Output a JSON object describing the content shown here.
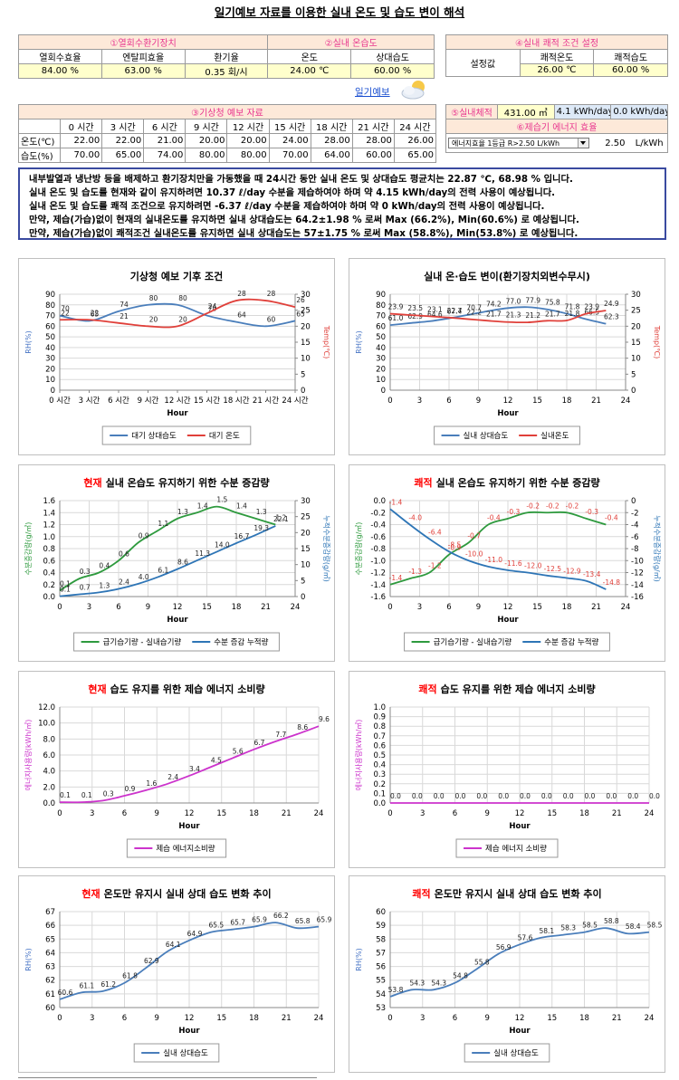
{
  "header": {
    "title": "일기예보 자료를 이용한 실내 온도 및 습도 변이 해석"
  },
  "ventilation_table": {
    "group1": "①열회수환기장치",
    "group2": "②실내 온습도",
    "headers": [
      "열회수효율",
      "엔탈피효율",
      "환기율",
      "온도",
      "상대습도"
    ],
    "values": [
      "84.00 %",
      "63.00 %",
      "0.35 회/시",
      "24.00 ℃",
      "60.00 %"
    ]
  },
  "comfort_table": {
    "title": "④실내 쾌적 조건 설정",
    "row_label": "설정값",
    "headers": [
      "쾌적온도",
      "쾌적습도"
    ],
    "values": [
      "26.00 ℃",
      "60.00 %"
    ]
  },
  "forecast_link": "일기예보",
  "forecast_table": {
    "title": "③기상청 예보 자료",
    "headers": [
      "0 시간",
      "3 시간",
      "6 시간",
      "9 시간",
      "12 시간",
      "15 시간",
      "18 시간",
      "21 시간",
      "24 시간"
    ],
    "rows": [
      {
        "label": "온도(℃)",
        "values": [
          "22.00",
          "22.00",
          "21.00",
          "20.00",
          "20.00",
          "24.00",
          "28.00",
          "28.00",
          "26.00"
        ]
      },
      {
        "label": "습도(%)",
        "values": [
          "70.00",
          "65.00",
          "74.00",
          "80.00",
          "80.00",
          "70.00",
          "64.00",
          "60.00",
          "65.00"
        ]
      }
    ]
  },
  "volume_table": {
    "label": "⑤실내체적",
    "volume": "431.00 ㎥",
    "energy_current": "4.1 kWh/day",
    "energy_comfort": "0.0 kWh/day",
    "efficiency_title": "⑥제습기 에너지 효율",
    "dropdown": "에너지효율 1등급 R>2.50 L/kWh",
    "efficiency": "2.50",
    "efficiency_unit": "L/kWh"
  },
  "summary": [
    "내부발열과 냉난방 등을 배제하고 환기장치만을 가동했을 때  24시간 동안 실내 온도 및 상대습도 평균치는 22.87 ℃, 68.98 % 입니다.",
    "실내 온도 및 습도를 현재와 같이 유지하려면  10.37 ℓ/day 수분을 제습하여야 하며  약 4.15 kWh/day의 전력 사용이 예상됩니다.",
    "실내 온도 및 습도를 쾌적 조건으로 유지하려면  -6.37 ℓ/day 수분을 제습하여야 하며  약 0 kWh/day의 전력 사용이 예상됩니다.",
    "만약, 제습(가습)없이 현재의 실내온도를 유지하면 실내 상대습도는 64.2±1.98 % 로써 Max (66.2%), Min(60.6%) 로 예상됩니다.",
    "만약, 제습(가습)없이 쾌적조건 실내온도를 유지하면 실내 상대습도는 57±1.75 % 로써 Max (58.8%), Min(53.8%) 로 예상됩니다."
  ],
  "chart_data": [
    {
      "type": "line",
      "title": "기상청 예보 기후 조건",
      "xlabel": "Hour",
      "ylabel": "RH(%)",
      "ylabel_color": "#4472c4",
      "y2label": "Temp(℃)",
      "y2label_color": "#e0403a",
      "grid": "y",
      "categories": [
        "0 시간",
        "3 시간",
        "6 시간",
        "9 시간",
        "12 시간",
        "15 시간",
        "18 시간",
        "21 시간",
        "24 시간"
      ],
      "ylim": [
        0,
        90
      ],
      "yticks": [
        0,
        10,
        20,
        30,
        40,
        50,
        60,
        70,
        80,
        90
      ],
      "y2lim": [
        0,
        30
      ],
      "y2ticks": [
        0,
        5,
        10,
        15,
        20,
        25,
        30
      ],
      "series": [
        {
          "name": "대기 상대습도",
          "color": "#4a7ebb",
          "values": [
            70,
            65,
            74,
            80,
            80,
            70,
            64,
            60,
            65
          ]
        },
        {
          "name": "대기 온도",
          "color": "#e0403a",
          "axis": "y2",
          "values": [
            22,
            22,
            21,
            20,
            20,
            24,
            28,
            28,
            26
          ]
        }
      ]
    },
    {
      "type": "line",
      "title": "실내 온·습도 변이(환기장치외변수무시)",
      "xlabel": "Hour",
      "ylabel": "RH(%)",
      "ylabel_color": "#4472c4",
      "y2label": "Temp(℃)",
      "y2label_color": "#e0403a",
      "grid": "both",
      "x": [
        0,
        2,
        4,
        6,
        8,
        10,
        12,
        14,
        16,
        18,
        20,
        22
      ],
      "xlim": [
        0,
        24
      ],
      "xticks": [
        0,
        3,
        6,
        9,
        12,
        15,
        18,
        21,
        24
      ],
      "ylim": [
        0,
        90
      ],
      "yticks": [
        0,
        10,
        20,
        30,
        40,
        50,
        60,
        70,
        80,
        90
      ],
      "y2lim": [
        0,
        30
      ],
      "y2ticks": [
        0,
        5,
        10,
        15,
        20,
        25,
        30
      ],
      "series": [
        {
          "name": "실내 상대습도",
          "color": "#4a7ebb",
          "values": [
            61,
            62.9,
            64.6,
            67.4,
            70.7,
            74.2,
            77,
            77.9,
            75.8,
            71.8,
            66.5,
            62.3
          ],
          "value_labels": [
            "61.0",
            "62.9",
            "64.6",
            "67.4",
            "70.7",
            "74.2",
            "77.0",
            "77.9",
            "75.8",
            "71.8",
            "66.5",
            "62.3"
          ]
        },
        {
          "name": "실내온도",
          "color": "#e0403a",
          "axis": "y2",
          "values": [
            23.9,
            23.5,
            23.1,
            22.7,
            22.2,
            21.7,
            21.3,
            21.2,
            21.7,
            21.8,
            23.9,
            24.9
          ]
        }
      ]
    },
    {
      "type": "line",
      "title_highlight": "현재",
      "title": "실내 온습도 유지하기 위한 수분 증감량",
      "xlabel": "Hour",
      "ylabel": "수분증감량(g/㎥)",
      "ylabel_color": "#2e9a3e",
      "y2label": "누적수분증감량(g/㎥)",
      "y2label_color": "#2e75b6",
      "grid": "both",
      "x": [
        0,
        2,
        4,
        6,
        8,
        10,
        12,
        14,
        16,
        18,
        20,
        22
      ],
      "xlim": [
        0,
        24
      ],
      "xticks": [
        0,
        3,
        6,
        9,
        12,
        15,
        18,
        21,
        24
      ],
      "ylim": [
        0,
        1.6
      ],
      "yticks": [
        {
          "value": 0,
          "label": "0.0"
        },
        0.2,
        0.4,
        0.6,
        0.8,
        {
          "value": 1,
          "label": "1.0"
        },
        1.2,
        1.4,
        1.6
      ],
      "y2lim": [
        0,
        30
      ],
      "y2ticks": [
        0,
        5,
        10,
        15,
        20,
        25,
        30
      ],
      "series": [
        {
          "name": "급기습기량 - 실내습기량",
          "color": "#2e9a3e",
          "values": [
            0.1,
            0.3,
            0.4,
            0.6,
            0.9,
            1.1,
            1.3,
            1.4,
            1.5,
            1.4,
            1.3,
            1.2
          ]
        },
        {
          "name": "수분 증감 누적량",
          "color": "#2e75b6",
          "axis": "y2",
          "values": [
            0.1,
            0.7,
            1.3,
            2.4,
            4,
            6.1,
            8.6,
            11.3,
            14,
            16.7,
            19.3,
            22.1
          ],
          "value_labels": [
            "0.1",
            "0.7",
            "1.3",
            "2.4",
            "4.0",
            "6.1",
            "8.6",
            "11.3",
            "14.0",
            "16.7",
            "19.3",
            "22.1"
          ]
        }
      ]
    },
    {
      "type": "line",
      "title_highlight": "쾌적",
      "title": "실내 온습도 유지하기 위한 수분 증감량",
      "xlabel": "Hour",
      "ylabel": "수분증감량(g/㎥)",
      "ylabel_color": "#2e9a3e",
      "y2label": "누적수분증감량(g/㎥)",
      "y2label_color": "#2e75b6",
      "grid": "both",
      "label_color": "#e0403a",
      "x": [
        0,
        2,
        4,
        6,
        8,
        10,
        12,
        14,
        16,
        18,
        20,
        22
      ],
      "xlim": [
        0,
        24
      ],
      "xticks": [
        0,
        3,
        6,
        9,
        12,
        15,
        18,
        21,
        24
      ],
      "ylim": [
        -1.6,
        0
      ],
      "yticks": [
        -1.6,
        -1.4,
        -1.2,
        {
          "value": -1,
          "label": "-1.0"
        },
        -0.8,
        -0.6,
        -0.4,
        -0.2,
        {
          "value": 0,
          "label": "0.0"
        }
      ],
      "y2lim": [
        -16,
        0
      ],
      "y2ticks": [
        -16,
        -14,
        -12,
        -10,
        -8,
        -6,
        -4,
        -2,
        0
      ],
      "series": [
        {
          "name": "급기습기량 - 실내습기량",
          "color": "#2e9a3e",
          "values": [
            -1.4,
            -1.3,
            -1.2,
            -0.9,
            -0.7,
            -0.4,
            -0.3,
            -0.2,
            -0.2,
            -0.2,
            -0.3,
            -0.4
          ]
        },
        {
          "name": "수분 증감 누적량",
          "color": "#2e75b6",
          "axis": "y2",
          "values": [
            -1.4,
            -4,
            -6.4,
            -8.5,
            -10,
            -11,
            -11.6,
            -12,
            -12.5,
            -12.9,
            -13.4,
            -14.8
          ],
          "value_labels": [
            "-1.4",
            "-4.0",
            "-6.4",
            "-8.5",
            "-10.0",
            "-11.0",
            "-11.6",
            "-12.0",
            "-12.5",
            "-12.9",
            "-13.4",
            "-14.8"
          ]
        }
      ]
    },
    {
      "type": "line",
      "title_highlight": "현재",
      "title": "습도 유지를 위한 제습 에너지 소비량",
      "xlabel": "Hour",
      "ylabel": "에너지사용량(kWh/㎥)",
      "ylabel_color": "#cc33cc",
      "grid": "both",
      "x": [
        0,
        2,
        4,
        6,
        8,
        10,
        12,
        14,
        16,
        18,
        20,
        22,
        24
      ],
      "xlim": [
        0,
        24
      ],
      "xticks": [
        0,
        3,
        6,
        9,
        12,
        15,
        18,
        21,
        24
      ],
      "ylim": [
        0,
        12
      ],
      "yticks": [
        {
          "value": 0,
          "label": "0.0"
        },
        {
          "value": 2,
          "label": "2.0"
        },
        {
          "value": 4,
          "label": "4.0"
        },
        {
          "value": 6,
          "label": "6.0"
        },
        {
          "value": 8,
          "label": "8.0"
        },
        {
          "value": 10,
          "label": "10.0"
        },
        {
          "value": 12,
          "label": "12.0"
        }
      ],
      "series": [
        {
          "name": "제습 에너지소비량",
          "color": "#cc33cc",
          "values": [
            0.1,
            0.1,
            0.3,
            0.9,
            1.6,
            2.4,
            3.4,
            4.5,
            5.6,
            6.7,
            7.7,
            8.6,
            9.6
          ]
        }
      ]
    },
    {
      "type": "line",
      "title_highlight": "쾌적",
      "title": "습도 유지를 위한 제습 에너지 소비량",
      "xlabel": "Hour",
      "ylabel": "에너지사용량(kWh/㎥)",
      "ylabel_color": "#cc33cc",
      "grid": "both",
      "x": [
        0,
        2,
        4,
        6,
        8,
        10,
        12,
        14,
        16,
        18,
        20,
        22,
        24
      ],
      "xlim": [
        0,
        24
      ],
      "xticks": [
        0,
        3,
        6,
        9,
        12,
        15,
        18,
        21,
        24
      ],
      "ylim": [
        0,
        1
      ],
      "yticks": [
        {
          "value": 0,
          "label": "0.0"
        },
        0.1,
        0.2,
        0.3,
        0.4,
        0.5,
        0.6,
        0.7,
        0.8,
        0.9,
        {
          "value": 1,
          "label": "1.0"
        }
      ],
      "series": [
        {
          "name": "제습 에너지 소비량",
          "color": "#cc33cc",
          "values": [
            0,
            0,
            0,
            0,
            0,
            0,
            0,
            0,
            0,
            0,
            0,
            0,
            0
          ],
          "value_labels": [
            "0.0",
            "0.0",
            "0.0",
            "0.0",
            "0.0",
            "0.0",
            "0.0",
            "0.0",
            "0.0",
            "0.0",
            "0.0",
            "0.0",
            "0.0"
          ]
        }
      ]
    },
    {
      "type": "line",
      "title_highlight": "현재",
      "title": "온도만 유지시 실내 상대 습도 변화 추이",
      "xlabel": "Hour",
      "ylabel": "RH(%)",
      "ylabel_color": "#4472c4",
      "grid": "both",
      "x": [
        0,
        2,
        4,
        6,
        8,
        10,
        12,
        14,
        16,
        18,
        20,
        22,
        24
      ],
      "xlim": [
        0,
        24
      ],
      "xticks": [
        0,
        3,
        6,
        9,
        12,
        15,
        18,
        21,
        24
      ],
      "ylim": [
        60,
        67
      ],
      "yticks": [
        60,
        61,
        62,
        63,
        64,
        65,
        66,
        67
      ],
      "series": [
        {
          "name": "실내 상대습도",
          "color": "#4a7ebb",
          "values": [
            60.6,
            61.1,
            61.2,
            61.8,
            62.9,
            64.1,
            64.9,
            65.5,
            65.7,
            65.9,
            66.2,
            65.8,
            65.9
          ]
        }
      ]
    },
    {
      "type": "line",
      "title_highlight": "쾌적",
      "title": "온도만 유지시 실내 상대 습도 변화 추이",
      "xlabel": "Hour",
      "ylabel": "RH(%)",
      "ylabel_color": "#4472c4",
      "grid": "both",
      "x": [
        0,
        2,
        4,
        6,
        8,
        10,
        12,
        14,
        16,
        18,
        20,
        22,
        24
      ],
      "xlim": [
        0,
        24
      ],
      "xticks": [
        0,
        3,
        6,
        9,
        12,
        15,
        18,
        21,
        24
      ],
      "ylim": [
        53,
        60
      ],
      "yticks": [
        53,
        54,
        55,
        56,
        57,
        58,
        59,
        60
      ],
      "series": [
        {
          "name": "실내 상대습도",
          "color": "#4a7ebb",
          "values": [
            53.8,
            54.3,
            54.3,
            54.8,
            55.8,
            56.9,
            57.6,
            58.1,
            58.3,
            58.5,
            58.8,
            58.4,
            58.5
          ]
        }
      ]
    }
  ]
}
